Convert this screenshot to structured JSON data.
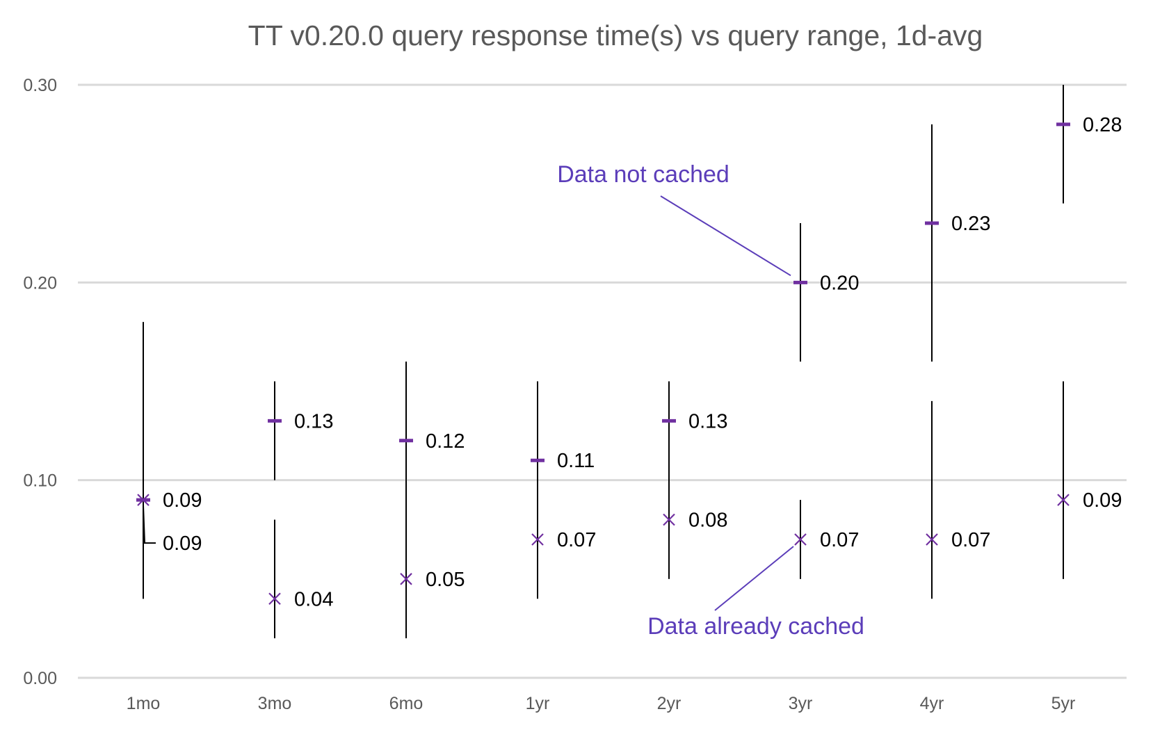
{
  "chart_data": {
    "type": "scatter",
    "title": "TT v0.20.0 query response time(s) vs query range, 1d-avg",
    "xlabel": "",
    "ylabel": "",
    "categories": [
      "1mo",
      "3mo",
      "6mo",
      "1yr",
      "2yr",
      "3yr",
      "4yr",
      "5yr"
    ],
    "ylim": [
      0,
      0.3
    ],
    "yticks": [
      "0.00",
      "0.10",
      "0.20",
      "0.30"
    ],
    "grid": true,
    "legend": "none",
    "series": [
      {
        "marker": "dash",
        "values": [
          0.09,
          0.13,
          0.12,
          0.11,
          0.13,
          0.2,
          0.23,
          0.28
        ],
        "labels": [
          "0.09",
          "0.13",
          "0.12",
          "0.11",
          "0.13",
          "0.20",
          "0.23",
          "0.28"
        ],
        "ranges": [
          [
            0.04,
            0.18
          ],
          [
            0.1,
            0.15
          ],
          [
            0.1,
            0.16
          ],
          [
            0.08,
            0.15
          ],
          [
            0.08,
            0.15
          ],
          [
            0.16,
            0.23
          ],
          [
            0.16,
            0.28
          ],
          [
            0.24,
            0.3
          ]
        ]
      },
      {
        "marker": "x",
        "values": [
          0.09,
          0.04,
          0.05,
          0.07,
          0.08,
          0.07,
          0.07,
          0.09
        ],
        "labels": [
          "0.09",
          "0.04",
          "0.05",
          "0.07",
          "0.08",
          "0.07",
          "0.07",
          "0.09"
        ],
        "ranges": [
          [
            0.04,
            0.18
          ],
          [
            0.02,
            0.08
          ],
          [
            0.02,
            0.1
          ],
          [
            0.04,
            0.08
          ],
          [
            0.05,
            0.08
          ],
          [
            0.05,
            0.09
          ],
          [
            0.04,
            0.14
          ],
          [
            0.05,
            0.15
          ]
        ]
      }
    ],
    "annotations": [
      {
        "text": "Data not cached",
        "series": 0,
        "category": "3yr"
      },
      {
        "text": "Data already cached",
        "series": 1,
        "category": "3yr"
      }
    ]
  },
  "colors": {
    "marker": "#7030a0",
    "annotation": "#5b3db9",
    "whisker": "#000000",
    "grid": "#d9d9d9",
    "text": "#595959"
  }
}
